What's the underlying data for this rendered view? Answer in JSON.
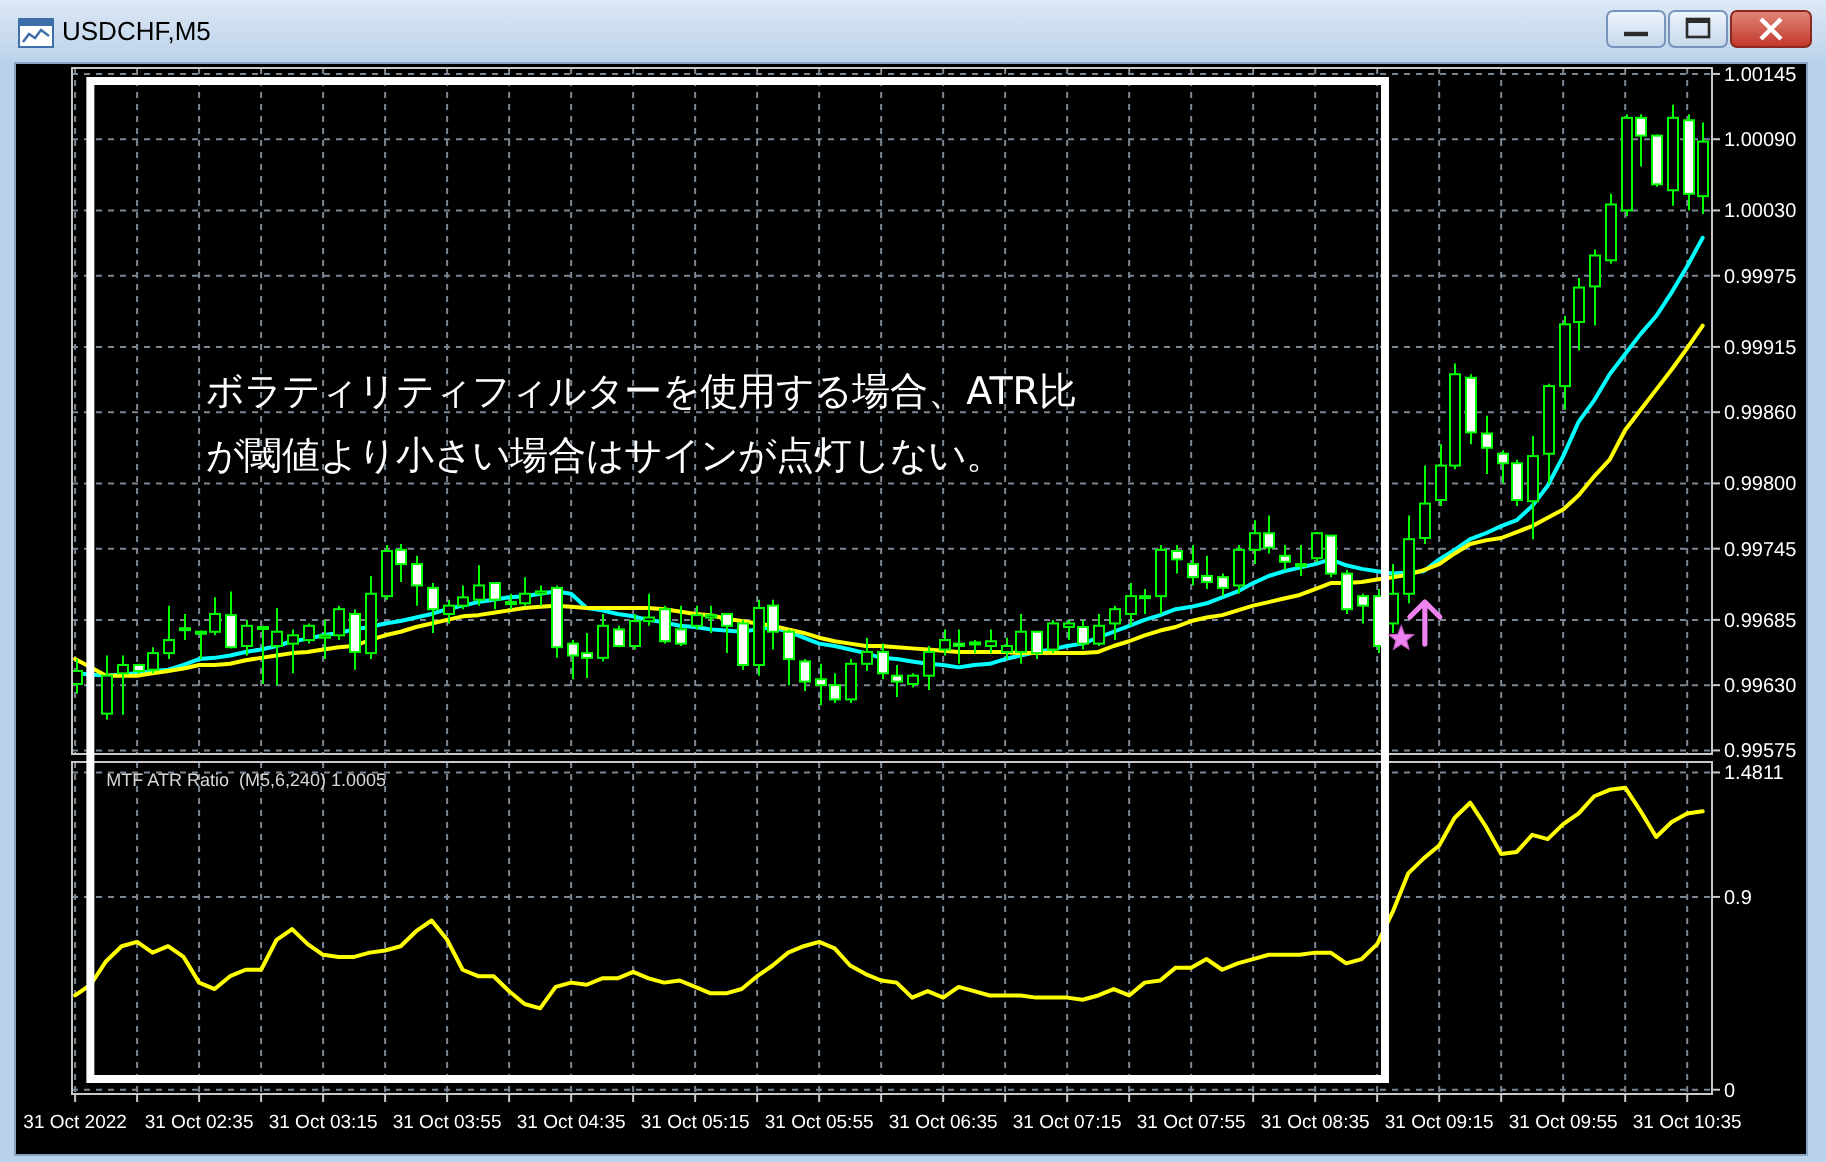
{
  "chart_data": [
    {
      "type": "candlestick",
      "title": "USDCHF,M5",
      "x": [
        "2022-10-31T01:55",
        "2022-10-31T02:00",
        "2022-10-31T02:05",
        "2022-10-31T02:10",
        "2022-10-31T02:15",
        "2022-10-31T02:20",
        "2022-10-31T02:25",
        "2022-10-31T02:30",
        "2022-10-31T02:35",
        "2022-10-31T02:40",
        "2022-10-31T02:45",
        "2022-10-31T02:50",
        "2022-10-31T02:55",
        "2022-10-31T03:00",
        "2022-10-31T03:05",
        "2022-10-31T03:10",
        "2022-10-31T03:15",
        "2022-10-31T03:20",
        "2022-10-31T03:25",
        "2022-10-31T03:30",
        "2022-10-31T03:35",
        "2022-10-31T03:40",
        "2022-10-31T03:45",
        "2022-10-31T03:50",
        "2022-10-31T03:55",
        "2022-10-31T04:00",
        "2022-10-31T04:05",
        "2022-10-31T04:10",
        "2022-10-31T04:15",
        "2022-10-31T04:20",
        "2022-10-31T04:25",
        "2022-10-31T04:30",
        "2022-10-31T04:35",
        "2022-10-31T04:40",
        "2022-10-31T04:45",
        "2022-10-31T04:50",
        "2022-10-31T04:55",
        "2022-10-31T05:00",
        "2022-10-31T05:05",
        "2022-10-31T05:10",
        "2022-10-31T05:15",
        "2022-10-31T05:20",
        "2022-10-31T05:25",
        "2022-10-31T05:30",
        "2022-10-31T05:35",
        "2022-10-31T05:40",
        "2022-10-31T05:45",
        "2022-10-31T05:50",
        "2022-10-31T05:55",
        "2022-10-31T06:00",
        "2022-10-31T06:05",
        "2022-10-31T06:10",
        "2022-10-31T06:15",
        "2022-10-31T06:20",
        "2022-10-31T06:25",
        "2022-10-31T06:30",
        "2022-10-31T06:35",
        "2022-10-31T06:40",
        "2022-10-31T06:45",
        "2022-10-31T06:50",
        "2022-10-31T06:55",
        "2022-10-31T07:00",
        "2022-10-31T07:05",
        "2022-10-31T07:10",
        "2022-10-31T07:15",
        "2022-10-31T07:20",
        "2022-10-31T07:25",
        "2022-10-31T07:30",
        "2022-10-31T07:35",
        "2022-10-31T07:40",
        "2022-10-31T07:45",
        "2022-10-31T07:50",
        "2022-10-31T07:55",
        "2022-10-31T08:00",
        "2022-10-31T08:05",
        "2022-10-31T08:10",
        "2022-10-31T08:15",
        "2022-10-31T08:20",
        "2022-10-31T08:25",
        "2022-10-31T08:30",
        "2022-10-31T08:35",
        "2022-10-31T08:40",
        "2022-10-31T08:45",
        "2022-10-31T08:50",
        "2022-10-31T08:55",
        "2022-10-31T09:00",
        "2022-10-31T09:05",
        "2022-10-31T09:10",
        "2022-10-31T09:15",
        "2022-10-31T09:20",
        "2022-10-31T09:25",
        "2022-10-31T09:30",
        "2022-10-31T09:35",
        "2022-10-31T09:40",
        "2022-10-31T09:45",
        "2022-10-31T09:50",
        "2022-10-31T09:55",
        "2022-10-31T10:00",
        "2022-10-31T10:05",
        "2022-10-31T10:10",
        "2022-10-31T10:15",
        "2022-10-31T10:20",
        "2022-10-31T10:25",
        "2022-10-31T10:30",
        "2022-10-31T10:35",
        "2022-10-31T10:40"
      ],
      "ohlc": [
        [
          0.99631,
          0.99652,
          0.99623,
          0.99642
        ],
        null,
        [
          0.99606,
          0.99655,
          0.99601,
          0.99638
        ],
        [
          0.9964,
          0.99655,
          0.99605,
          0.99647
        ],
        [
          0.99647,
          0.99648,
          0.9964,
          0.99642
        ],
        [
          0.99643,
          0.99662,
          0.9964,
          0.99657
        ],
        [
          0.99657,
          0.99697,
          0.99652,
          0.99668
        ],
        [
          0.99677,
          0.9969,
          0.99668,
          0.99678
        ],
        [
          0.99675,
          0.99676,
          0.99652,
          0.99674
        ],
        [
          0.99675,
          0.99704,
          0.99672,
          0.9969
        ],
        [
          0.99689,
          0.99709,
          0.99661,
          0.99662
        ],
        [
          0.99663,
          0.99685,
          0.99655,
          0.9968
        ],
        [
          0.99679,
          0.9968,
          0.99631,
          0.99678
        ],
        [
          0.99663,
          0.99695,
          0.9963,
          0.99675
        ],
        [
          0.99665,
          0.99677,
          0.9964,
          0.99672
        ],
        [
          0.99668,
          0.99682,
          0.99665,
          0.9968
        ],
        [
          0.9967,
          0.99685,
          0.99652,
          0.99672
        ],
        [
          0.99672,
          0.99697,
          0.99668,
          0.99694
        ],
        [
          0.9969,
          0.99694,
          0.99643,
          0.99658
        ],
        [
          0.99657,
          0.99722,
          0.99652,
          0.99707
        ],
        [
          0.99705,
          0.99748,
          0.99702,
          0.99743
        ],
        [
          0.99744,
          0.99749,
          0.99717,
          0.99732
        ],
        [
          0.99732,
          0.99739,
          0.99697,
          0.99714
        ],
        [
          0.99712,
          0.99716,
          0.99674,
          0.99694
        ],
        [
          0.9969,
          0.99702,
          0.99682,
          0.99697
        ],
        [
          0.99697,
          0.99714,
          0.99694,
          0.99704
        ],
        [
          0.99702,
          0.99731,
          0.99697,
          0.99714
        ],
        [
          0.99716,
          0.99716,
          0.99694,
          0.99702
        ],
        [
          0.99699,
          0.99707,
          0.99694,
          0.997
        ],
        [
          0.99699,
          0.99721,
          0.99697,
          0.99707
        ],
        [
          0.99707,
          0.99714,
          0.99697,
          0.99709
        ],
        [
          0.99712,
          0.99714,
          0.99653,
          0.99662
        ],
        [
          0.99665,
          0.99668,
          0.99635,
          0.99655
        ],
        [
          0.99657,
          0.99674,
          0.99636,
          0.99653
        ],
        [
          0.99653,
          0.9969,
          0.9965,
          0.9968
        ],
        [
          0.99677,
          0.9968,
          0.99662,
          0.99663
        ],
        [
          0.99663,
          0.9969,
          0.9966,
          0.99684
        ],
        [
          0.99684,
          0.99707,
          0.9968,
          0.99687
        ],
        [
          0.99694,
          0.99697,
          0.99665,
          0.99667
        ],
        [
          0.99677,
          0.99697,
          0.99663,
          0.99665
        ],
        [
          0.9968,
          0.99697,
          0.99677,
          0.99689
        ],
        [
          0.99687,
          0.99697,
          0.99674,
          0.99689
        ],
        [
          0.9969,
          0.9969,
          0.99657,
          0.9968
        ],
        [
          0.99682,
          0.99685,
          0.99643,
          0.99647
        ],
        [
          0.99647,
          0.99702,
          0.99638,
          0.99695
        ],
        [
          0.99697,
          0.99702,
          0.9966,
          0.99675
        ],
        [
          0.99675,
          0.99677,
          0.9963,
          0.99652
        ],
        [
          0.9965,
          0.99652,
          0.99625,
          0.99633
        ],
        [
          0.99635,
          0.99648,
          0.99613,
          0.9963
        ],
        [
          0.9963,
          0.9964,
          0.99615,
          0.99618
        ],
        [
          0.99618,
          0.99652,
          0.99615,
          0.99648
        ],
        [
          0.99648,
          0.9967,
          0.99642,
          0.99658
        ],
        [
          0.99658,
          0.99665,
          0.99635,
          0.9964
        ],
        [
          0.99638,
          0.99647,
          0.9962,
          0.99633
        ],
        [
          0.99631,
          0.9964,
          0.99628,
          0.99638
        ],
        [
          0.99638,
          0.99663,
          0.99626,
          0.99658
        ],
        [
          0.9966,
          0.99677,
          0.99655,
          0.99668
        ],
        [
          0.99665,
          0.99677,
          0.99648,
          0.99663
        ],
        [
          0.99665,
          0.99668,
          0.99657,
          0.99666
        ],
        [
          0.99663,
          0.99677,
          0.99657,
          0.99667
        ],
        [
          0.99658,
          0.9967,
          0.99652,
          0.99663
        ],
        [
          0.99658,
          0.9969,
          0.99648,
          0.99675
        ],
        [
          0.99675,
          0.99675,
          0.99652,
          0.99657
        ],
        [
          0.9966,
          0.99685,
          0.99657,
          0.99682
        ],
        [
          0.99679,
          0.99685,
          0.99668,
          0.99682
        ],
        [
          0.99679,
          0.99685,
          0.9966,
          0.99665
        ],
        [
          0.99665,
          0.9969,
          0.99663,
          0.9968
        ],
        [
          0.99682,
          0.99697,
          0.99668,
          0.99694
        ],
        [
          0.9969,
          0.99716,
          0.9968,
          0.99705
        ],
        [
          0.99705,
          0.99711,
          0.9969,
          0.99704
        ],
        [
          0.99705,
          0.99748,
          0.9969,
          0.99744
        ],
        [
          0.99743,
          0.99748,
          0.99724,
          0.99736
        ],
        [
          0.99732,
          0.99748,
          0.99714,
          0.99721
        ],
        [
          0.99722,
          0.99739,
          0.99711,
          0.99717
        ],
        [
          0.99721,
          0.99724,
          0.99705,
          0.99712
        ],
        [
          0.99714,
          0.99748,
          0.99707,
          0.99744
        ],
        [
          0.99744,
          0.99769,
          0.99732,
          0.99758
        ],
        [
          0.99758,
          0.99773,
          0.99741,
          0.99746
        ],
        [
          0.99739,
          0.99748,
          0.99727,
          0.99734
        ],
        [
          0.99732,
          0.99748,
          0.99722,
          0.99731
        ],
        [
          0.99737,
          0.99759,
          0.99734,
          0.99758
        ],
        [
          0.99756,
          0.99756,
          0.99721,
          0.99724
        ],
        [
          0.99724,
          0.99727,
          0.9969,
          0.99694
        ],
        [
          0.99705,
          0.99707,
          0.99682,
          0.99697
        ],
        [
          0.99705,
          0.99711,
          0.99657,
          0.99663
        ],
        [
          0.99682,
          0.99732,
          0.99674,
          0.99707
        ],
        [
          0.99707,
          0.99773,
          0.99699,
          0.99753
        ],
        [
          0.99754,
          0.99815,
          0.99749,
          0.99783
        ],
        [
          0.99786,
          0.99833,
          0.99781,
          0.99815
        ],
        [
          0.99815,
          0.99901,
          0.99812,
          0.99892
        ],
        [
          0.99889,
          0.99892,
          0.99833,
          0.99843
        ],
        [
          0.99842,
          0.99857,
          0.99808,
          0.9983
        ],
        [
          0.99825,
          0.99828,
          0.998,
          0.99817
        ],
        [
          0.99817,
          0.9982,
          0.99781,
          0.99786
        ],
        [
          0.99785,
          0.9984,
          0.99753,
          0.99823
        ],
        [
          0.99825,
          0.99884,
          0.998,
          0.99882
        ],
        [
          0.99882,
          0.99941,
          0.99862,
          0.99934
        ],
        [
          0.99936,
          0.99973,
          0.99912,
          0.99965
        ],
        [
          0.99966,
          0.99997,
          0.99933,
          0.99992
        ],
        [
          0.99988,
          1.00044,
          0.99985,
          1.00035
        ],
        [
          1.0003,
          1.00111,
          1.00025,
          1.00108
        ],
        [
          1.00108,
          1.00111,
          1.00067,
          1.00093
        ],
        [
          1.00093,
          1.00094,
          1.0005,
          1.00052
        ],
        [
          1.00047,
          1.00119,
          1.00034,
          1.00108
        ],
        [
          1.00106,
          1.00111,
          1.0003,
          1.00044
        ],
        [
          1.00042,
          1.00104,
          1.00027,
          1.00088
        ]
      ],
      "color": "#00ff00",
      "series": [
        {
          "type": "line",
          "color": "#00ffff",
          "values": [
            0.9964,
            0.99639,
            0.99638,
            0.99639,
            0.9964,
            0.99642,
            0.99643,
            0.99647,
            0.99652,
            0.99653,
            0.99655,
            0.99658,
            0.9966,
            0.99663,
            0.99667,
            0.99669,
            0.99672,
            0.99674,
            0.99677,
            0.99679,
            0.99682,
            0.99684,
            0.99687,
            0.9969,
            0.99694,
            0.99697,
            0.997,
            0.99702,
            0.99704,
            0.99705,
            0.99707,
            0.99709,
            0.99707,
            0.99695,
            0.99693,
            0.9969,
            0.99688,
            0.99685,
            0.99683,
            0.9968,
            0.99679,
            0.99677,
            0.99676,
            0.99675,
            0.99677,
            0.99679,
            0.99675,
            0.9967,
            0.99665,
            0.99663,
            0.9966,
            0.99657,
            0.99653,
            0.99652,
            0.9965,
            0.99648,
            0.99647,
            0.99645,
            0.99647,
            0.99648,
            0.99652,
            0.99655,
            0.99658,
            0.9966,
            0.99663,
            0.99665,
            0.9967,
            0.99675,
            0.9968,
            0.99685,
            0.99689,
            0.99694,
            0.99696,
            0.99699,
            0.99704,
            0.99709,
            0.99716,
            0.99722,
            0.99726,
            0.99729,
            0.99732,
            0.99736,
            0.99731,
            0.99728,
            0.99726,
            0.99724,
            0.99725,
            0.99726,
            0.99736,
            0.99744,
            0.99753,
            0.99758,
            0.99764,
            0.99769,
            0.99781,
            0.99798,
            0.99823,
            0.99852,
            0.9987,
            0.99892,
            0.99909,
            0.99926,
            0.99941,
            0.99961,
            0.99983,
            1.00007
          ]
        },
        {
          "type": "line",
          "color": "#ffff00",
          "values": [
            0.99652,
            0.99645,
            0.99638,
            0.99638,
            0.99638,
            0.9964,
            0.99642,
            0.99644,
            0.99647,
            0.99647,
            0.99648,
            0.99651,
            0.99653,
            0.99655,
            0.99657,
            0.99658,
            0.9966,
            0.99662,
            0.99663,
            0.99668,
            0.99672,
            0.99675,
            0.99679,
            0.99682,
            0.99685,
            0.99688,
            0.99689,
            0.99691,
            0.99693,
            0.99695,
            0.99696,
            0.99697,
            0.99696,
            0.99695,
            0.99695,
            0.99695,
            0.99695,
            0.99695,
            0.99694,
            0.99692,
            0.9969,
            0.99689,
            0.99686,
            0.99684,
            0.99682,
            0.9968,
            0.99677,
            0.99674,
            0.9967,
            0.99667,
            0.99665,
            0.99663,
            0.99663,
            0.99662,
            0.99661,
            0.9966,
            0.99659,
            0.99658,
            0.99658,
            0.99658,
            0.99658,
            0.99657,
            0.99657,
            0.99657,
            0.99657,
            0.99657,
            0.99658,
            0.99663,
            0.99667,
            0.99672,
            0.99676,
            0.99679,
            0.99684,
            0.99687,
            0.99689,
            0.99693,
            0.99697,
            0.997,
            0.99703,
            0.99706,
            0.99711,
            0.99716,
            0.99716,
            0.99717,
            0.99719,
            0.99721,
            0.99723,
            0.99727,
            0.99732,
            0.99741,
            0.99749,
            0.99752,
            0.99754,
            0.99759,
            0.99764,
            0.99771,
            0.99778,
            0.9979,
            0.99806,
            0.9982,
            0.99845,
            0.99862,
            0.99879,
            0.99896,
            0.99914,
            0.99933
          ]
        }
      ],
      "xlim": [
        "2022-10-31T01:54",
        "2022-10-31T10:43"
      ],
      "xticks": [
        "2022-10-31T01:55",
        "2022-10-31T02:15",
        "2022-10-31T02:35",
        "2022-10-31T02:55",
        "2022-10-31T03:15",
        "2022-10-31T03:35",
        "2022-10-31T03:55",
        "2022-10-31T04:15",
        "2022-10-31T04:35",
        "2022-10-31T04:55",
        "2022-10-31T05:15",
        "2022-10-31T05:35",
        "2022-10-31T05:55",
        "2022-10-31T06:15",
        "2022-10-31T06:35",
        "2022-10-31T06:55",
        "2022-10-31T07:15",
        "2022-10-31T07:35",
        "2022-10-31T07:55",
        "2022-10-31T08:15",
        "2022-10-31T08:35",
        "2022-10-31T08:55",
        "2022-10-31T09:15",
        "2022-10-31T09:35",
        "2022-10-31T09:55",
        "2022-10-31T10:15",
        "2022-10-31T10:35"
      ],
      "ylim": [
        0.99572,
        1.0015
      ],
      "yticks": [
        0.99575,
        {
          "value": 0.9963,
          "label": "0.99630"
        },
        0.99685,
        0.99745,
        {
          "value": 0.998,
          "label": "0.99800"
        },
        {
          "value": 0.9986,
          "label": "0.99860"
        },
        0.99915,
        0.99975,
        {
          "value": 1.0003,
          "label": "1.00030"
        },
        {
          "value": 1.0009,
          "label": "1.00090"
        },
        1.00145
      ],
      "tick_labels": "y",
      "grid": true,
      "annotations": [
        "ボラティリティフィルターを使用する場合、ATR比",
        "が閾値より小さい場合はサインが点灯しない。"
      ]
    },
    {
      "type": "line",
      "title": "MTF ATR Ratio  (M5,6,240) 1.0005",
      "x": [
        "2022-10-31T01:55",
        "2022-10-31T02:00",
        "2022-10-31T02:05",
        "2022-10-31T02:10",
        "2022-10-31T02:15",
        "2022-10-31T02:20",
        "2022-10-31T02:25",
        "2022-10-31T02:30",
        "2022-10-31T02:35",
        "2022-10-31T02:40",
        "2022-10-31T02:45",
        "2022-10-31T02:50",
        "2022-10-31T02:55",
        "2022-10-31T03:00",
        "2022-10-31T03:05",
        "2022-10-31T03:10",
        "2022-10-31T03:15",
        "2022-10-31T03:20",
        "2022-10-31T03:25",
        "2022-10-31T03:30",
        "2022-10-31T03:35",
        "2022-10-31T03:40",
        "2022-10-31T03:45",
        "2022-10-31T03:50",
        "2022-10-31T03:55",
        "2022-10-31T04:00",
        "2022-10-31T04:05",
        "2022-10-31T04:10",
        "2022-10-31T04:15",
        "2022-10-31T04:20",
        "2022-10-31T04:25",
        "2022-10-31T04:30",
        "2022-10-31T04:35",
        "2022-10-31T04:40",
        "2022-10-31T04:45",
        "2022-10-31T04:50",
        "2022-10-31T04:55",
        "2022-10-31T05:00",
        "2022-10-31T05:05",
        "2022-10-31T05:10",
        "2022-10-31T05:15",
        "2022-10-31T05:20",
        "2022-10-31T05:25",
        "2022-10-31T05:30",
        "2022-10-31T05:35",
        "2022-10-31T05:40",
        "2022-10-31T05:45",
        "2022-10-31T05:50",
        "2022-10-31T05:55",
        "2022-10-31T06:00",
        "2022-10-31T06:05",
        "2022-10-31T06:10",
        "2022-10-31T06:15",
        "2022-10-31T06:20",
        "2022-10-31T06:25",
        "2022-10-31T06:30",
        "2022-10-31T06:35",
        "2022-10-31T06:40",
        "2022-10-31T06:45",
        "2022-10-31T06:50",
        "2022-10-31T06:55",
        "2022-10-31T07:00",
        "2022-10-31T07:05",
        "2022-10-31T07:10",
        "2022-10-31T07:15",
        "2022-10-31T07:20",
        "2022-10-31T07:25",
        "2022-10-31T07:30",
        "2022-10-31T07:35",
        "2022-10-31T07:40",
        "2022-10-31T07:45",
        "2022-10-31T07:50",
        "2022-10-31T07:55",
        "2022-10-31T08:00",
        "2022-10-31T08:05",
        "2022-10-31T08:10",
        "2022-10-31T08:15",
        "2022-10-31T08:20",
        "2022-10-31T08:25",
        "2022-10-31T08:30",
        "2022-10-31T08:35",
        "2022-10-31T08:40",
        "2022-10-31T08:45",
        "2022-10-31T08:50",
        "2022-10-31T08:55",
        "2022-10-31T09:00",
        "2022-10-31T09:05",
        "2022-10-31T09:10",
        "2022-10-31T09:15",
        "2022-10-31T09:20",
        "2022-10-31T09:25",
        "2022-10-31T09:30",
        "2022-10-31T09:35",
        "2022-10-31T09:40",
        "2022-10-31T09:45",
        "2022-10-31T09:50",
        "2022-10-31T09:55",
        "2022-10-31T10:00",
        "2022-10-31T10:05",
        "2022-10-31T10:10",
        "2022-10-31T10:15",
        "2022-10-31T10:20",
        "2022-10-31T10:25",
        "2022-10-31T10:30",
        "2022-10-31T10:35",
        "2022-10-31T10:40"
      ],
      "values": [
        0.44,
        0.49,
        0.6,
        0.67,
        0.69,
        0.64,
        0.67,
        0.62,
        0.5,
        0.47,
        0.53,
        0.56,
        0.56,
        0.7,
        0.75,
        0.68,
        0.63,
        0.62,
        0.62,
        0.64,
        0.65,
        0.67,
        0.74,
        0.79,
        0.7,
        0.56,
        0.53,
        0.53,
        0.46,
        0.4,
        0.38,
        0.48,
        0.5,
        0.49,
        0.52,
        0.52,
        0.55,
        0.52,
        0.5,
        0.51,
        0.48,
        0.45,
        0.45,
        0.47,
        0.53,
        0.58,
        0.64,
        0.67,
        0.69,
        0.66,
        0.58,
        0.54,
        0.51,
        0.5,
        0.43,
        0.46,
        0.43,
        0.48,
        0.46,
        0.44,
        0.44,
        0.44,
        0.43,
        0.43,
        0.43,
        0.42,
        0.44,
        0.47,
        0.44,
        0.5,
        0.51,
        0.57,
        0.57,
        0.61,
        0.56,
        0.59,
        0.61,
        0.63,
        0.63,
        0.63,
        0.64,
        0.64,
        0.59,
        0.61,
        0.68,
        0.83,
        1.01,
        1.08,
        1.14,
        1.27,
        1.34,
        1.23,
        1.1,
        1.11,
        1.19,
        1.17,
        1.24,
        1.29,
        1.37,
        1.4,
        1.41,
        1.3,
        1.18,
        1.25,
        1.29,
        1.3
      ],
      "color": "#ffff00",
      "xlim": [
        "2022-10-31T01:54",
        "2022-10-31T10:43"
      ],
      "xticks": [
        {
          "value": "2022-10-31T01:55",
          "label": "31 Oct 2022"
        },
        {
          "value": "2022-10-31T02:15",
          "label": null
        },
        {
          "value": "2022-10-31T02:35",
          "label": "31 Oct 02:35"
        },
        {
          "value": "2022-10-31T02:55",
          "label": null
        },
        {
          "value": "2022-10-31T03:15",
          "label": "31 Oct 03:15"
        },
        {
          "value": "2022-10-31T03:35",
          "label": null
        },
        {
          "value": "2022-10-31T03:55",
          "label": "31 Oct 03:55"
        },
        {
          "value": "2022-10-31T04:15",
          "label": null
        },
        {
          "value": "2022-10-31T04:35",
          "label": "31 Oct 04:35"
        },
        {
          "value": "2022-10-31T04:55",
          "label": null
        },
        {
          "value": "2022-10-31T05:15",
          "label": "31 Oct 05:15"
        },
        {
          "value": "2022-10-31T05:35",
          "label": null
        },
        {
          "value": "2022-10-31T05:55",
          "label": "31 Oct 05:55"
        },
        {
          "value": "2022-10-31T06:15",
          "label": null
        },
        {
          "value": "2022-10-31T06:35",
          "label": "31 Oct 06:35"
        },
        {
          "value": "2022-10-31T06:55",
          "label": null
        },
        {
          "value": "2022-10-31T07:15",
          "label": "31 Oct 07:15"
        },
        {
          "value": "2022-10-31T07:35",
          "label": null
        },
        {
          "value": "2022-10-31T07:55",
          "label": "31 Oct 07:55"
        },
        {
          "value": "2022-10-31T08:15",
          "label": null
        },
        {
          "value": "2022-10-31T08:35",
          "label": "31 Oct 08:35"
        },
        {
          "value": "2022-10-31T08:55",
          "label": null
        },
        {
          "value": "2022-10-31T09:15",
          "label": "31 Oct 09:15"
        },
        {
          "value": "2022-10-31T09:35",
          "label": null
        },
        {
          "value": "2022-10-31T09:55",
          "label": "31 Oct 09:55"
        },
        {
          "value": "2022-10-31T10:15",
          "label": null
        },
        {
          "value": "2022-10-31T10:35",
          "label": "31 Oct 10:35"
        }
      ],
      "ylim": [
        -0.02,
        1.53
      ],
      "yticks": [
        0,
        0.9,
        1.4811
      ],
      "grid": true
    }
  ]
}
